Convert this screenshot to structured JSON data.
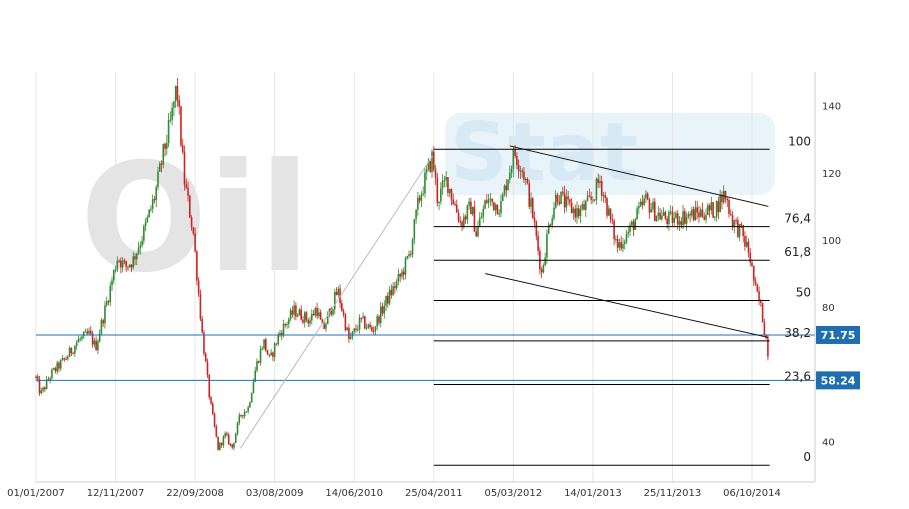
{
  "chart_data": {
    "type": "candlestick",
    "x_axis": {
      "type": "date",
      "range": [
        "2007-01-01",
        "2014-12-15"
      ],
      "tick_labels": [
        "01/01/2007",
        "12/11/2007",
        "22/09/2008",
        "03/08/2009",
        "14/06/2010",
        "25/04/2011",
        "05/03/2012",
        "14/01/2013",
        "25/11/2013",
        "06/10/2014"
      ],
      "tick_dates": [
        "2007-01-01",
        "2007-11-12",
        "2008-09-22",
        "2009-08-03",
        "2010-06-14",
        "2011-04-25",
        "2012-03-05",
        "2013-01-14",
        "2013-11-25",
        "2014-10-06"
      ]
    },
    "y_axis": {
      "position": "right",
      "range": [
        28,
        150
      ],
      "tick_labels": [
        "140",
        "120",
        "100",
        "80",
        "40"
      ],
      "tick_values": [
        140,
        120,
        100,
        80,
        40
      ]
    },
    "grid": "vertical",
    "colors": {
      "up": "#2e8b2e",
      "down": "#cc2222",
      "grid": "#e6e6e6",
      "level": "#000000",
      "horizontal": "#1f6fb0",
      "tag": "#1f6fb0"
    },
    "price_path": [
      [
        "2007-01-01",
        59
      ],
      [
        "2007-01-20",
        54
      ],
      [
        "2007-03-01",
        60
      ],
      [
        "2007-05-01",
        65
      ],
      [
        "2007-06-15",
        70
      ],
      [
        "2007-08-01",
        72
      ],
      [
        "2007-08-25",
        68
      ],
      [
        "2007-10-10",
        82
      ],
      [
        "2007-11-20",
        95
      ],
      [
        "2007-12-20",
        92
      ],
      [
        "2008-01-20",
        94
      ],
      [
        "2008-03-01",
        102
      ],
      [
        "2008-04-15",
        113
      ],
      [
        "2008-05-20",
        126
      ],
      [
        "2008-06-20",
        136
      ],
      [
        "2008-07-11",
        146
      ],
      [
        "2008-08-10",
        118
      ],
      [
        "2008-09-15",
        102
      ],
      [
        "2008-10-20",
        72
      ],
      [
        "2008-11-20",
        52
      ],
      [
        "2008-12-22",
        38
      ],
      [
        "2009-01-20",
        42
      ],
      [
        "2009-02-15",
        38
      ],
      [
        "2009-03-20",
        48
      ],
      [
        "2009-04-20",
        50
      ],
      [
        "2009-05-20",
        62
      ],
      [
        "2009-06-20",
        70
      ],
      [
        "2009-07-15",
        64
      ],
      [
        "2009-08-20",
        72
      ],
      [
        "2009-10-20",
        79
      ],
      [
        "2009-12-20",
        76
      ],
      [
        "2010-01-15",
        80
      ],
      [
        "2010-02-10",
        73
      ],
      [
        "2010-04-10",
        85
      ],
      [
        "2010-05-25",
        70
      ],
      [
        "2010-07-10",
        76
      ],
      [
        "2010-08-25",
        73
      ],
      [
        "2010-10-20",
        82
      ],
      [
        "2010-12-20",
        90
      ],
      [
        "2011-01-20",
        96
      ],
      [
        "2011-02-25",
        112
      ],
      [
        "2011-04-20",
        125
      ],
      [
        "2011-05-10",
        112
      ],
      [
        "2011-06-15",
        118
      ],
      [
        "2011-08-10",
        105
      ],
      [
        "2011-09-20",
        110
      ],
      [
        "2011-10-10",
        102
      ],
      [
        "2011-11-20",
        112
      ],
      [
        "2012-01-15",
        110
      ],
      [
        "2012-02-15",
        120
      ],
      [
        "2012-03-10",
        126
      ],
      [
        "2012-04-15",
        120
      ],
      [
        "2012-05-20",
        108
      ],
      [
        "2012-06-25",
        90
      ],
      [
        "2012-07-25",
        105
      ],
      [
        "2012-08-25",
        114
      ],
      [
        "2012-10-05",
        110
      ],
      [
        "2012-11-20",
        108
      ],
      [
        "2013-01-10",
        112
      ],
      [
        "2013-02-10",
        118
      ],
      [
        "2013-03-10",
        110
      ],
      [
        "2013-04-20",
        98
      ],
      [
        "2013-06-10",
        103
      ],
      [
        "2013-08-10",
        112
      ],
      [
        "2013-09-20",
        108
      ],
      [
        "2013-11-10",
        106
      ],
      [
        "2014-01-10",
        107
      ],
      [
        "2014-03-10",
        108
      ],
      [
        "2014-05-10",
        109
      ],
      [
        "2014-06-20",
        114
      ],
      [
        "2014-07-20",
        106
      ],
      [
        "2014-08-25",
        102
      ],
      [
        "2014-09-25",
        96
      ],
      [
        "2014-10-20",
        85
      ],
      [
        "2014-11-10",
        80
      ],
      [
        "2014-11-27",
        72
      ],
      [
        "2014-12-05",
        69
      ],
      [
        "2014-12-12",
        64
      ]
    ],
    "fibonacci": {
      "start_date": "2011-04-25",
      "end_date": "2014-12-15",
      "levels": [
        {
          "label": "100",
          "value": 127
        },
        {
          "label": "76,4",
          "value": 104
        },
        {
          "label": "61,8",
          "value": 94
        },
        {
          "label": "50",
          "value": 82
        },
        {
          "label": "38,2",
          "value": 70
        },
        {
          "label": "23,6",
          "value": 57
        },
        {
          "label": "0",
          "value": 33
        }
      ]
    },
    "horizontal_lines": [
      {
        "label": "71.75",
        "value": 71.75
      },
      {
        "label": "58.24",
        "value": 58.24
      }
    ],
    "trendlines": [
      {
        "from": [
          "2012-02-20",
          128
        ],
        "to": [
          "2014-12-10",
          110
        ]
      },
      {
        "from": [
          "2011-11-15",
          90
        ],
        "to": [
          "2014-12-10",
          71
        ]
      },
      {
        "from": [
          "2009-03-20",
          38
        ],
        "to": [
          "2011-04-20",
          125
        ]
      }
    ],
    "watermark": "OilStat"
  }
}
